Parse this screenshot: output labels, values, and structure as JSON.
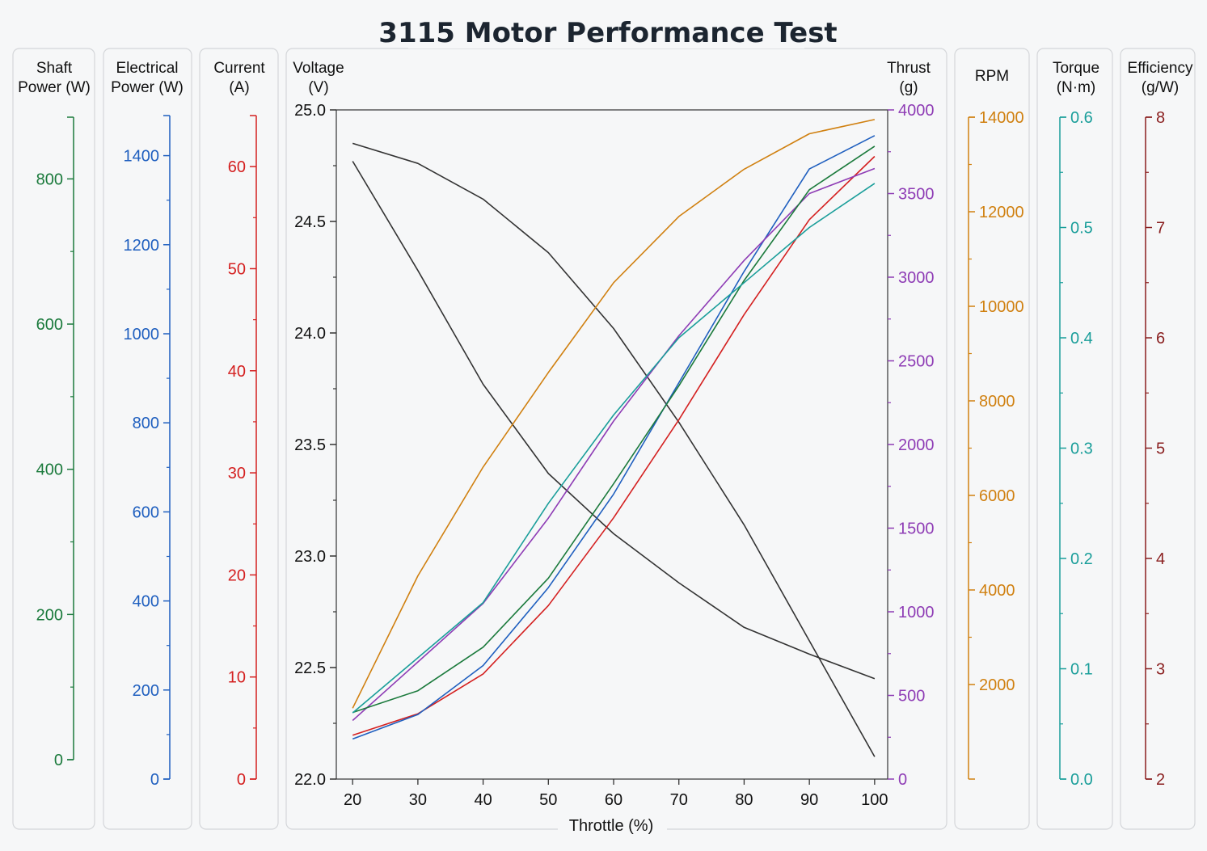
{
  "title": "3115 Motor Performance Test",
  "chart_data": {
    "type": "line",
    "title": "3115 Motor Performance Test",
    "xlabel": "Throttle (%)",
    "x": [
      20,
      30,
      40,
      50,
      60,
      70,
      80,
      90,
      100
    ],
    "xlim": [
      17.5,
      102
    ],
    "grid": false,
    "axes": [
      {
        "id": "shaft",
        "label": [
          "Shaft",
          "Power (W)"
        ],
        "color": "#1b7a3c",
        "range": [
          0,
          885
        ],
        "ticks": [
          0,
          200,
          400,
          600,
          800
        ],
        "tick_labels": [
          "0",
          "200",
          "400",
          "600",
          "800"
        ]
      },
      {
        "id": "elec",
        "label": [
          "Electrical",
          "Power (W)"
        ],
        "color": "#1f5fbf",
        "range": [
          0,
          1490
        ],
        "ticks": [
          0,
          200,
          400,
          600,
          800,
          1000,
          1200,
          1400
        ],
        "tick_labels": [
          "0",
          "200",
          "400",
          "600",
          "800",
          "1000",
          "1200",
          "1400"
        ]
      },
      {
        "id": "current",
        "label": [
          "Current",
          "(A)"
        ],
        "color": "#d42020",
        "range": [
          0,
          65
        ],
        "ticks": [
          0,
          10,
          20,
          30,
          40,
          50,
          60
        ],
        "tick_labels": [
          "0",
          "10",
          "20",
          "30",
          "40",
          "50",
          "60"
        ]
      },
      {
        "id": "voltage",
        "label": [
          "Voltage",
          "(V)"
        ],
        "color": "#333333",
        "range": [
          22.0,
          25.0
        ],
        "ticks": [
          22.0,
          22.5,
          23.0,
          23.5,
          24.0,
          24.5,
          25.0
        ],
        "tick_labels": [
          "22.0",
          "22.5",
          "23.0",
          "23.5",
          "24.0",
          "24.5",
          "25.0"
        ]
      },
      {
        "id": "thrust",
        "label": [
          "Thrust",
          "(g)"
        ],
        "color": "#8e3cb5",
        "range": [
          0,
          4000
        ],
        "ticks": [
          0,
          500,
          1000,
          1500,
          2000,
          2500,
          3000,
          3500,
          4000
        ],
        "tick_labels": [
          "0",
          "500",
          "1000",
          "1500",
          "2000",
          "2500",
          "3000",
          "3500",
          "4000"
        ]
      },
      {
        "id": "rpm",
        "label": [
          "RPM"
        ],
        "color": "#d08010",
        "range": [
          0,
          14000
        ],
        "ticks": [
          2000,
          4000,
          6000,
          8000,
          10000,
          12000,
          14000
        ],
        "tick_labels": [
          "2000",
          "4000",
          "6000",
          "8000",
          "10000",
          "12000",
          "14000"
        ]
      },
      {
        "id": "torque",
        "label": [
          "Torque",
          "(N·m)"
        ],
        "color": "#1a9e9a",
        "range": [
          0,
          0.6
        ],
        "ticks": [
          0,
          0.1,
          0.2,
          0.3,
          0.4,
          0.5,
          0.6
        ],
        "tick_labels": [
          "0.0",
          "0.1",
          "0.2",
          "0.3",
          "0.4",
          "0.5",
          "0.6"
        ]
      },
      {
        "id": "eff",
        "label": [
          "Efficiency",
          "(g/W)"
        ],
        "color": "#8a1f1f",
        "range": [
          2,
          8
        ],
        "ticks": [
          2,
          3,
          4,
          5,
          6,
          7,
          8
        ],
        "tick_labels": [
          "2",
          "3",
          "4",
          "5",
          "6",
          "7",
          "8"
        ]
      }
    ],
    "series": [
      {
        "axis": "voltage",
        "color": "#333333",
        "values": [
          24.85,
          24.76,
          24.6,
          24.36,
          24.02,
          23.6,
          23.14,
          22.62,
          22.1
        ]
      },
      {
        "axis": "voltage",
        "color": "#333333",
        "values": [
          24.77,
          24.28,
          23.77,
          23.37,
          23.1,
          22.88,
          22.68,
          22.56,
          22.45
        ]
      },
      {
        "axis": "rpm",
        "color": "#d08010",
        "values": [
          1500,
          4300,
          6600,
          8600,
          10500,
          11900,
          12900,
          13650,
          13950
        ]
      },
      {
        "axis": "current",
        "color": "#d42020",
        "values": [
          4.3,
          6.4,
          10.3,
          17.0,
          25.6,
          35.2,
          45.5,
          54.8,
          61.0
        ]
      },
      {
        "axis": "elec",
        "color": "#1f5fbf",
        "values": [
          90,
          145,
          255,
          430,
          640,
          890,
          1140,
          1370,
          1445
        ]
      },
      {
        "axis": "thrust",
        "color": "#8e3cb5",
        "values": [
          350,
          700,
          1050,
          1560,
          2140,
          2650,
          3100,
          3500,
          3650
        ]
      },
      {
        "axis": "shaft",
        "color": "#1b7a3c",
        "values": [
          65,
          95,
          155,
          250,
          380,
          515,
          660,
          785,
          845
        ]
      },
      {
        "axis": "torque",
        "color": "#1a9e9a",
        "values": [
          0.06,
          0.11,
          0.16,
          0.25,
          0.33,
          0.4,
          0.45,
          0.5,
          0.54
        ]
      }
    ]
  }
}
